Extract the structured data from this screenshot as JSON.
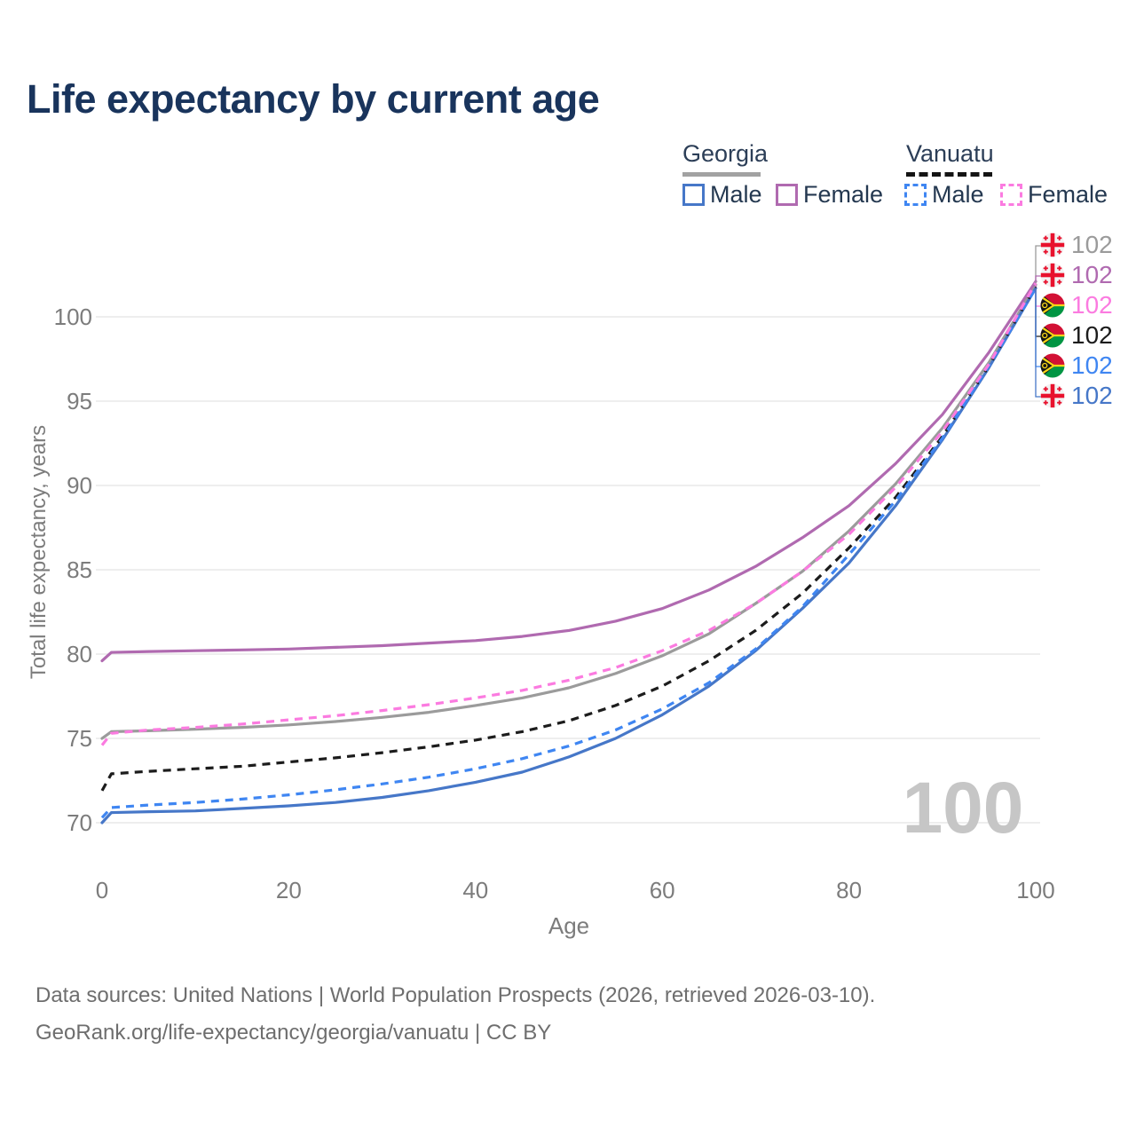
{
  "title": "Life expectancy by current age",
  "legend": {
    "georgia": {
      "label": "Georgia",
      "line_style": "solid",
      "line_color": "#a2a2a2",
      "items": [
        {
          "label": "Male",
          "color": "#4677c8"
        },
        {
          "label": "Female",
          "color": "#b06ab0"
        }
      ]
    },
    "vanuatu": {
      "label": "Vanuatu",
      "line_style": "dashed",
      "line_color": "#141414",
      "items": [
        {
          "label": "Male",
          "color": "#3f86f2"
        },
        {
          "label": "Female",
          "color": "#fb7be0"
        }
      ]
    }
  },
  "watermark": "100",
  "end_labels": [
    {
      "flag": "georgia",
      "value": "102",
      "color": "#9b9b9b",
      "series": "Georgia Both sexes"
    },
    {
      "flag": "georgia",
      "value": "102",
      "color": "#b06ab0",
      "series": "Georgia Female"
    },
    {
      "flag": "vanuatu",
      "value": "102",
      "color": "#fb7be0",
      "series": "Vanuatu Female"
    },
    {
      "flag": "vanuatu",
      "value": "102",
      "color": "#1c1c1c",
      "series": "Vanuatu Both sexes"
    },
    {
      "flag": "vanuatu",
      "value": "102",
      "color": "#3f86f2",
      "series": "Vanuatu Male"
    },
    {
      "flag": "georgia",
      "value": "102",
      "color": "#4677c8",
      "series": "Georgia Male"
    }
  ],
  "footer": {
    "line1": "Data sources: United Nations | World Population Prospects (2026, retrieved 2026-03-10).",
    "line2": "GeoRank.org/life-expectancy/georgia/vanuatu | CC BY"
  },
  "chart_data": {
    "type": "line",
    "title": "Life expectancy by current age",
    "xlabel": "Age",
    "ylabel": "Total life expectancy, years",
    "xlim": [
      0,
      100
    ],
    "ylim": [
      69,
      103
    ],
    "xticks": [
      0,
      20,
      40,
      60,
      80,
      100
    ],
    "yticks": [
      70,
      75,
      80,
      85,
      90,
      95,
      100
    ],
    "grid": "horizontal",
    "legend_position": "top-right",
    "x": [
      0,
      1,
      5,
      10,
      15,
      20,
      25,
      30,
      35,
      40,
      45,
      50,
      55,
      60,
      65,
      70,
      75,
      80,
      85,
      90,
      95,
      100
    ],
    "series": [
      {
        "name": "Georgia Both sexes",
        "country": "Georgia",
        "sex": "Both sexes",
        "style": "solid",
        "color": "#9b9b9b",
        "values": [
          75.0,
          75.4,
          75.45,
          75.55,
          75.65,
          75.8,
          76.0,
          76.25,
          76.55,
          76.95,
          77.4,
          78.0,
          78.85,
          79.9,
          81.2,
          83.0,
          84.9,
          87.3,
          90.1,
          93.4,
          97.3,
          101.9
        ]
      },
      {
        "name": "Georgia Male",
        "country": "Georgia",
        "sex": "Male",
        "style": "solid",
        "color": "#4677c8",
        "values": [
          70.0,
          70.6,
          70.65,
          70.7,
          70.85,
          71.0,
          71.2,
          71.5,
          71.9,
          72.4,
          73.0,
          73.9,
          75.0,
          76.4,
          78.1,
          80.2,
          82.7,
          85.4,
          88.8,
          92.7,
          97.0,
          101.7
        ]
      },
      {
        "name": "Georgia Female",
        "country": "Georgia",
        "sex": "Female",
        "style": "solid",
        "color": "#b06ab0",
        "values": [
          79.6,
          80.1,
          80.15,
          80.2,
          80.25,
          80.3,
          80.4,
          80.5,
          80.65,
          80.8,
          81.05,
          81.4,
          81.95,
          82.7,
          83.8,
          85.2,
          86.9,
          88.8,
          91.3,
          94.2,
          97.9,
          102.1
        ]
      },
      {
        "name": "Vanuatu Both sexes",
        "country": "Vanuatu",
        "sex": "Both sexes",
        "style": "dashed",
        "color": "#1c1c1c",
        "values": [
          71.9,
          72.9,
          73.05,
          73.2,
          73.35,
          73.6,
          73.85,
          74.15,
          74.5,
          74.9,
          75.4,
          76.05,
          76.95,
          78.1,
          79.6,
          81.4,
          83.6,
          86.3,
          89.3,
          92.9,
          97.1,
          101.8
        ]
      },
      {
        "name": "Vanuatu Male",
        "country": "Vanuatu",
        "sex": "Male",
        "style": "dashed",
        "color": "#3f86f2",
        "values": [
          70.3,
          70.9,
          71.05,
          71.2,
          71.4,
          71.65,
          71.95,
          72.3,
          72.7,
          73.2,
          73.8,
          74.55,
          75.5,
          76.75,
          78.3,
          80.3,
          82.8,
          85.9,
          89.1,
          92.8,
          97.1,
          101.7
        ]
      },
      {
        "name": "Vanuatu Female",
        "country": "Vanuatu",
        "sex": "Female",
        "style": "dashed",
        "color": "#fb7be0",
        "values": [
          74.6,
          75.3,
          75.5,
          75.65,
          75.85,
          76.1,
          76.35,
          76.65,
          77.0,
          77.4,
          77.85,
          78.45,
          79.2,
          80.2,
          81.4,
          83.0,
          84.9,
          87.1,
          89.9,
          93.2,
          97.2,
          102.0
        ]
      }
    ]
  }
}
